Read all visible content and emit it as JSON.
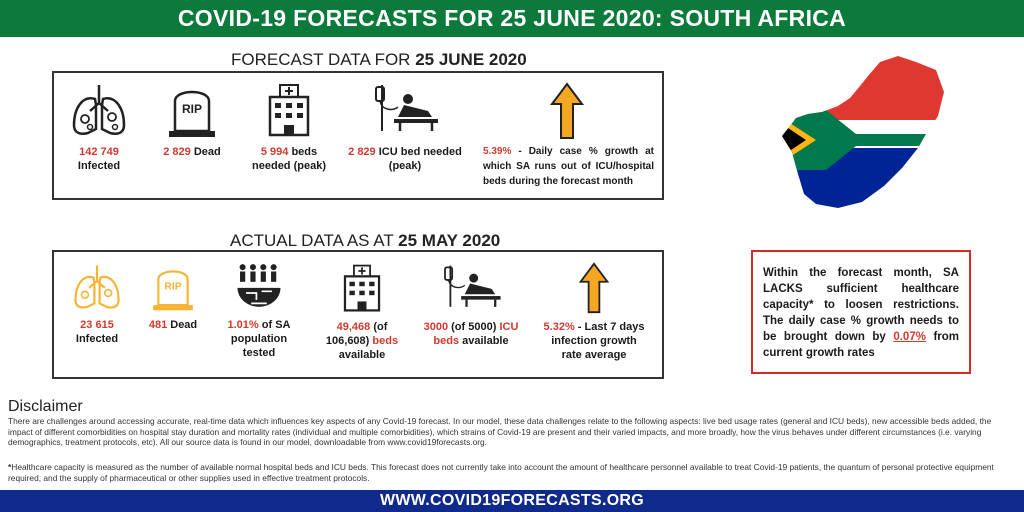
{
  "header": {
    "title": "COVID-19 FORECASTS FOR 25 JUNE 2020: SOUTH AFRICA"
  },
  "forecast": {
    "title_prefix": "FORECAST DATA FOR ",
    "title_date": "25 JUNE 2020",
    "infected_value": "142 749",
    "infected_label": "Infected",
    "dead_value": "2 829",
    "dead_label": " Dead",
    "beds_value": "5 994",
    "beds_label_1": " beds",
    "beds_label_2": "needed (peak)",
    "icu_value": "2 829",
    "icu_label_1": " ICU bed needed",
    "icu_label_2": "(peak)",
    "growth_value": "5.39%",
    "growth_label": " - Daily case % growth at which SA runs out of ICU/hospital beds during the forecast month"
  },
  "actual": {
    "title_prefix": "ACTUAL DATA AS AT ",
    "title_date": "25 MAY 2020",
    "infected_value": "23 615",
    "infected_label": "Infected",
    "dead_value": "481",
    "dead_label": " Dead",
    "tested_value": "1.01%",
    "tested_label_1": " of SA",
    "tested_label_2": "population",
    "tested_label_3": "tested",
    "beds_value": "49,468",
    "beds_of": " (of",
    "beds_total": "106,608)",
    "beds_word": " beds",
    "beds_available": "available",
    "icu_value": "3000",
    "icu_of": " (of 5000) ",
    "icu_word": "ICU",
    "icu_beds": "beds",
    "icu_available": " available",
    "growth_value": "5.32%",
    "growth_label_1": " - Last 7 days",
    "growth_label_2": "infection growth",
    "growth_label_3": "rate average"
  },
  "side_note": {
    "text_1": "Within the  forecast month, SA LACKS sufficient healthcare capacity* to loosen restrictions. The daily case % growth needs to be brought down by ",
    "value": "0.07%",
    "text_2": " from current growth rates"
  },
  "icons": {
    "lungs": "lungs-virus-icon",
    "grave": "tombstone-rip-icon",
    "hospital": "hospital-icon",
    "icu": "icu-bed-icon",
    "arrow": "growth-arrow-icon",
    "people": "population-test-icon",
    "map": "south-africa-flag-map",
    "grave_text": "RIP"
  },
  "disclaimer": {
    "title": "Disclaimer",
    "text": "There are challenges around accessing accurate, real-time data which influences key aspects of any Covid-19 forecast. In our model, these data challenges relate to the following aspects: live bed usage rates (general and ICU beds), new accessible beds added, the impact of different comorbidities on hospital stay duration and mortality rates (individual and multiple comorbidities), which strains of Covid-19 are present and their varied impacts, and more broadly, how the virus behaves under different circumstances (i.e. varying demographics, treatment protocols, etc). All our source data is found in our model, downloadable from www.covid19forecasts.org.",
    "footnote_marker": "*",
    "footnote": "Healthcare capacity is measured as the number of available normal hospital beds and ICU beds. This forecast does not currently take into account the amount of healthcare personnel available to treat Covid-19 patients, the quantum of personal protective equipment required, and the supply of pharmaceutical or other supplies used in effective treatment protocols."
  },
  "footer": {
    "url": "WWW.COVID19FORECASTS.ORG"
  },
  "colors": {
    "green": "#0b7a3a",
    "navy": "#0f2a8a",
    "red": "#d13a2e",
    "gold": "#f5a623",
    "light_gold": "#f7c95a"
  }
}
